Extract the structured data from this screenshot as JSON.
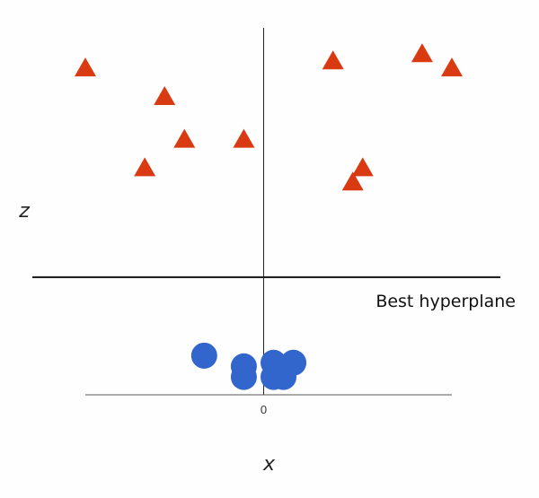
{
  "chart_data": {
    "type": "scatter",
    "xlabel": "x",
    "ylabel": "z",
    "xlim": [
      -9,
      9.5
    ],
    "ylim": [
      -0.3,
      10
    ],
    "x_ticks": [
      {
        "value": 0,
        "label": "0"
      }
    ],
    "annotation": "Best hyperplane",
    "hyperplane_z": 3,
    "series": [
      {
        "marker": "triangle",
        "color": "#d93a12",
        "points": [
          {
            "x": -9.0,
            "z": 8.9
          },
          {
            "x": -5.0,
            "z": 8.1
          },
          {
            "x": -4.0,
            "z": 6.9
          },
          {
            "x": -1.0,
            "z": 6.9
          },
          {
            "x": -6.0,
            "z": 6.1
          },
          {
            "x": 3.5,
            "z": 9.1
          },
          {
            "x": 8.0,
            "z": 9.3
          },
          {
            "x": 9.5,
            "z": 8.9
          },
          {
            "x": 5.0,
            "z": 6.1
          },
          {
            "x": 4.5,
            "z": 5.7
          }
        ]
      },
      {
        "marker": "circle",
        "color": "#3366cc",
        "points": [
          {
            "x": -3.0,
            "z": 0.8
          },
          {
            "x": -1.0,
            "z": 0.5
          },
          {
            "x": 0.5,
            "z": 0.6
          },
          {
            "x": 1.5,
            "z": 0.6
          },
          {
            "x": -1.0,
            "z": 0.2
          },
          {
            "x": 0.5,
            "z": 0.2
          },
          {
            "x": 1.0,
            "z": 0.2
          }
        ]
      }
    ]
  }
}
